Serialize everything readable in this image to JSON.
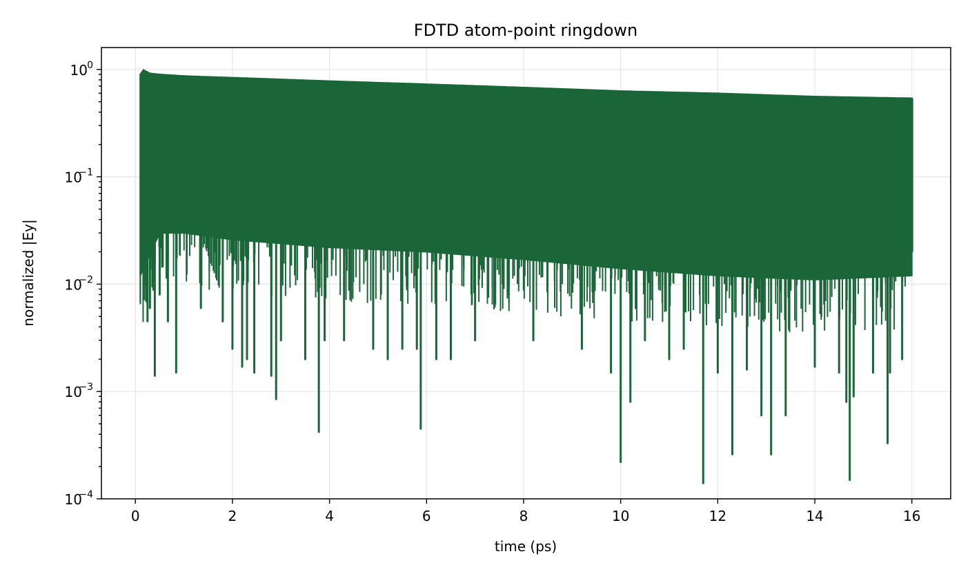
{
  "chart_data": {
    "type": "line",
    "title": "FDTD atom-point ringdown",
    "xlabel": "time (ps)",
    "ylabel": "normalized |Ey|",
    "xlim": [
      -0.7,
      16.8
    ],
    "ylim": [
      0.0001,
      1.6
    ],
    "yscale": "log",
    "grid": true,
    "legend": "none",
    "x_ticks": [
      0,
      2,
      4,
      6,
      8,
      10,
      12,
      14,
      16
    ],
    "x_tick_labels": [
      "0",
      "2",
      "4",
      "6",
      "8",
      "10",
      "12",
      "14",
      "16"
    ],
    "y_ticks": [
      0.0001,
      0.001,
      0.01,
      0.1,
      1
    ],
    "y_tick_labels": [
      {
        "base": "10",
        "exp": "−4"
      },
      {
        "base": "10",
        "exp": "−3"
      },
      {
        "base": "10",
        "exp": "−2"
      },
      {
        "base": "10",
        "exp": "−1"
      },
      {
        "base": "10",
        "exp": "0"
      }
    ],
    "line_color": "#1a6639",
    "series": [
      {
        "envelope": {
          "x": [
            0.1,
            0.15,
            0.3,
            0.5,
            1,
            2,
            4,
            6,
            8,
            10,
            12,
            14,
            16
          ],
          "y": [
            0.9,
            1.0,
            0.92,
            0.9,
            0.87,
            0.84,
            0.78,
            0.73,
            0.68,
            0.63,
            0.6,
            0.56,
            0.54
          ]
        },
        "dense_floor": {
          "x": [
            0.1,
            0.5,
            1,
            2,
            4,
            6,
            8,
            10,
            12,
            14,
            16
          ],
          "y": [
            0.012,
            0.03,
            0.03,
            0.026,
            0.022,
            0.02,
            0.017,
            0.014,
            0.012,
            0.011,
            0.012
          ]
        },
        "dips": {
          "x": [
            0.17,
            0.22,
            0.25,
            0.3,
            0.35,
            0.4,
            0.5,
            0.67,
            0.84,
            1.35,
            1.8,
            2.0,
            2.2,
            2.3,
            2.45,
            2.8,
            2.9,
            3.0,
            3.5,
            3.78,
            3.9,
            4.3,
            4.9,
            5.2,
            5.5,
            5.8,
            5.88,
            6.2,
            6.5,
            7.0,
            8.2,
            9.2,
            9.8,
            10.0,
            10.2,
            10.5,
            11.0,
            11.3,
            11.7,
            12.0,
            12.3,
            12.6,
            12.9,
            13.1,
            13.4,
            14.0,
            14.5,
            14.65,
            14.72,
            14.8,
            15.2,
            15.5,
            15.55,
            15.8
          ],
          "y": [
            0.01,
            0.007,
            0.0045,
            0.006,
            0.0095,
            0.0014,
            0.008,
            0.0045,
            0.0015,
            0.006,
            0.0045,
            0.0025,
            0.0017,
            0.002,
            0.0015,
            0.0014,
            0.00085,
            0.003,
            0.002,
            0.00042,
            0.003,
            0.003,
            0.0025,
            0.002,
            0.0025,
            0.0025,
            0.00045,
            0.002,
            0.002,
            0.003,
            0.003,
            0.0025,
            0.0015,
            0.00022,
            0.0008,
            0.003,
            0.002,
            0.0025,
            0.00014,
            0.0015,
            0.00026,
            0.0016,
            0.0006,
            0.00026,
            0.0006,
            0.0017,
            0.0015,
            0.0008,
            0.00015,
            0.0009,
            0.0015,
            0.00033,
            0.0015,
            0.002
          ]
        }
      }
    ]
  }
}
